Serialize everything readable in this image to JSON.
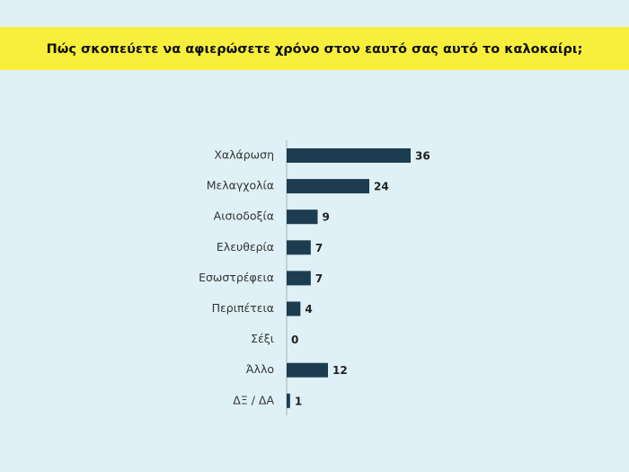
{
  "chart_data": {
    "type": "bar",
    "orientation": "horizontal",
    "title": "Πώς σκοπεύετε να αφιερώσετε χρόνο στον εαυτό σας αυτό το καλοκαίρι;",
    "categories": [
      "Χαλάρωση",
      "Μελαγχολία",
      "Αισιοδοξία",
      "Ελευθερία",
      "Εσωστρέφεια",
      "Περιπέτεια",
      "Σέξι",
      "Άλλο",
      "ΔΞ / ΔΑ"
    ],
    "values": [
      36,
      24,
      9,
      7,
      7,
      4,
      0,
      12,
      1
    ],
    "color": "#1c3d4f"
  }
}
